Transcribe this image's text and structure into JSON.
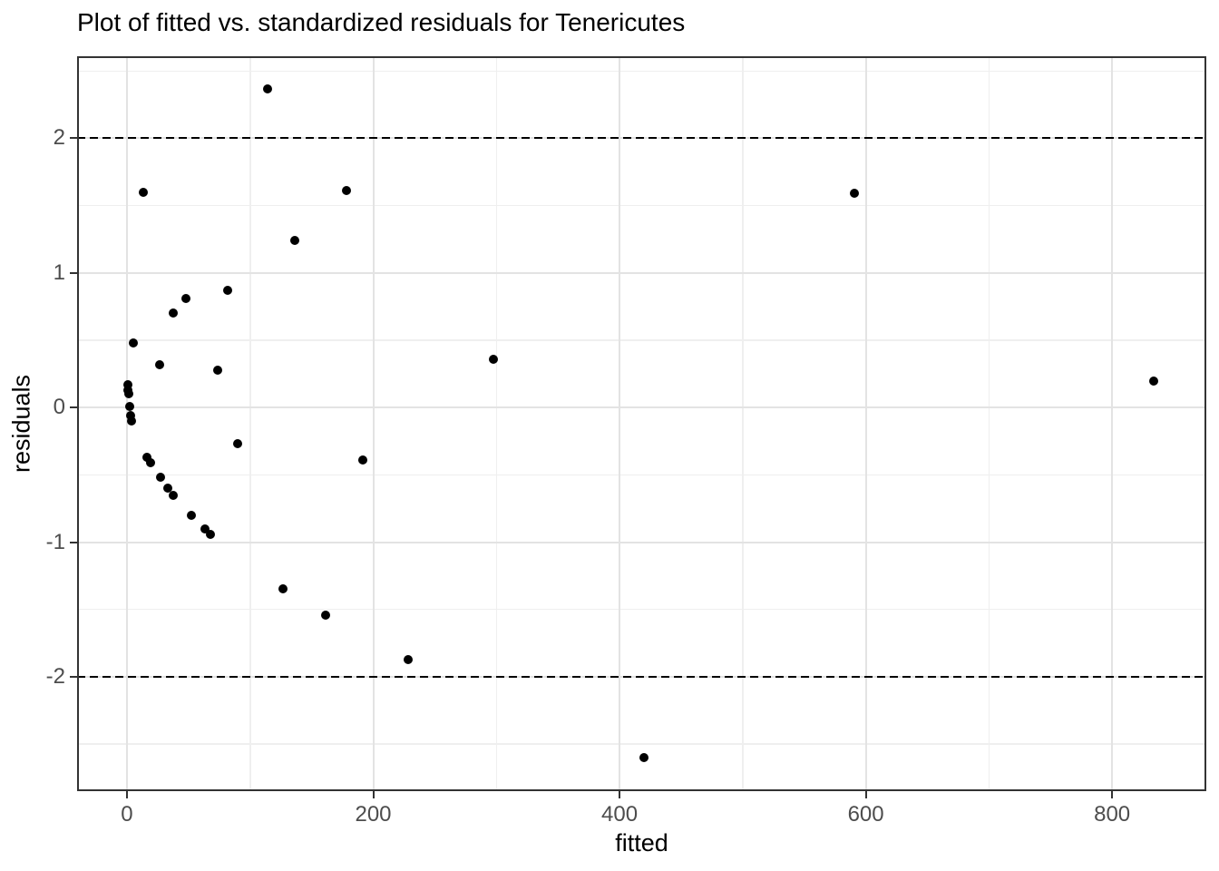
{
  "chart_data": {
    "type": "scatter",
    "title": "Plot of fitted vs. standardized residuals for Tenericutes",
    "xlabel": "fitted",
    "ylabel": "residuals",
    "xlim": [
      -40.5,
      876.5
    ],
    "ylim": [
      -2.85,
      2.61
    ],
    "x_major_ticks": [
      0,
      200,
      400,
      600,
      800
    ],
    "x_tick_labels": [
      "0",
      "200",
      "400",
      "600",
      "800"
    ],
    "x_minor_gridlines": [
      100,
      300,
      500,
      700
    ],
    "y_major_ticks": [
      -2,
      -1,
      0,
      1,
      2
    ],
    "y_tick_labels": [
      "-2",
      "-1",
      "0",
      "1",
      "2"
    ],
    "y_minor_gridlines": [
      -2.5,
      -1.5,
      -0.5,
      0.5,
      1.5,
      2.5
    ],
    "reference_lines": [
      {
        "y": 2,
        "style": "dashed"
      },
      {
        "y": -2,
        "style": "dashed"
      }
    ],
    "grid": true,
    "legend": "none",
    "point_fields": [
      "fitted",
      "residual"
    ],
    "points": [
      [
        114.5,
        2.37
      ],
      [
        13,
        1.6
      ],
      [
        178,
        1.61
      ],
      [
        591,
        1.59
      ],
      [
        136,
        1.24
      ],
      [
        81.5,
        0.87
      ],
      [
        48,
        0.81
      ],
      [
        37.5,
        0.7
      ],
      [
        5,
        0.48
      ],
      [
        26.5,
        0.32
      ],
      [
        74,
        0.28
      ],
      [
        297.5,
        0.36
      ],
      [
        834,
        0.2
      ],
      [
        0.5,
        0.17
      ],
      [
        0.8,
        0.13
      ],
      [
        1.2,
        0.1
      ],
      [
        2.5,
        0.01
      ],
      [
        3.0,
        -0.06
      ],
      [
        3.5,
        -0.1
      ],
      [
        90,
        -0.27
      ],
      [
        16.5,
        -0.37
      ],
      [
        19.5,
        -0.41
      ],
      [
        191.5,
        -0.39
      ],
      [
        27,
        -0.52
      ],
      [
        33,
        -0.6
      ],
      [
        37.5,
        -0.65
      ],
      [
        52,
        -0.8
      ],
      [
        63,
        -0.9
      ],
      [
        68,
        -0.94
      ],
      [
        126.5,
        -1.35
      ],
      [
        161,
        -1.54
      ],
      [
        228,
        -1.87
      ],
      [
        420,
        -2.6
      ]
    ]
  },
  "colors": {
    "point": "#000000",
    "grid_major": "#E3E3E3",
    "grid_minor": "#EFEFEF",
    "panel_border": "#333333",
    "axis_text": "#4D4D4D",
    "title_text": "#000000",
    "reference_line": "#000000",
    "background": "#FFFFFF"
  }
}
